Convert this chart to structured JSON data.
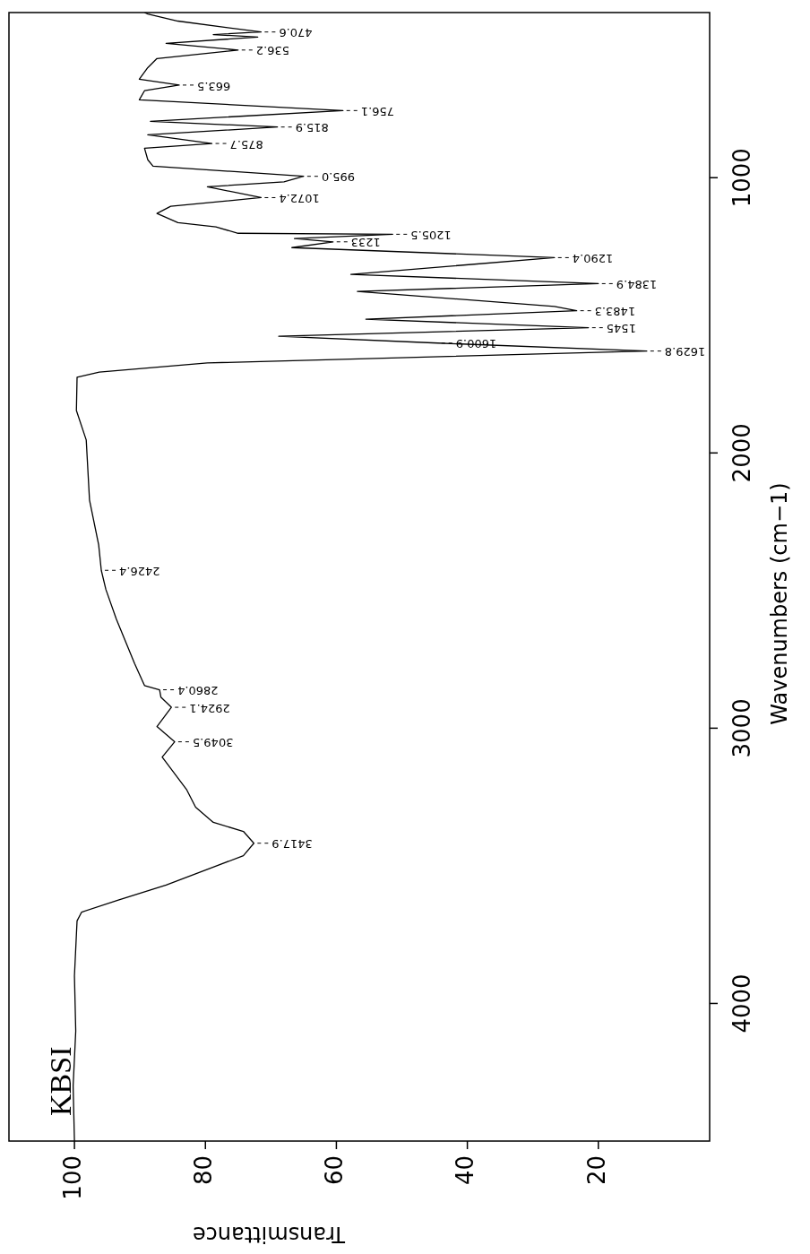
{
  "chart_data": {
    "type": "line",
    "xlabel": "Transmittance",
    "ylabel": "Wavenumbers (cm−1)",
    "xlim": [
      110,
      3
    ],
    "ylim": [
      4500,
      400
    ],
    "xticks": [
      20,
      40,
      60,
      80,
      100
    ],
    "yticks": [
      1000,
      2000,
      3000,
      4000
    ],
    "grid": false,
    "legend": false,
    "marker": "none",
    "line_style": "solid",
    "x": [
      100,
      100.2,
      99.8,
      100,
      99.6,
      98.9,
      93.4,
      86,
      78.8,
      74.2,
      72.6,
      74.2,
      78.8,
      81.5,
      82.9,
      86.6,
      84.7,
      87.4,
      85.2,
      86.8,
      87,
      89.3,
      90.8,
      93.6,
      95.2,
      95.9,
      96.3,
      97.7,
      98.2,
      99.7,
      99.6,
      96.2,
      79.7,
      12.6,
      44.5,
      68.8,
      21.5,
      55.5,
      23.3,
      26.7,
      56.8,
      20,
      57.8,
      26.7,
      66.8,
      60.5,
      66.4,
      51.4,
      75,
      78.4,
      84.2,
      87.4,
      85.3,
      71.5,
      79.7,
      68,
      65,
      88,
      88.8,
      89.3,
      79,
      88.8,
      69,
      88.4,
      59,
      90.1,
      89.3,
      84,
      90.1,
      88.8,
      87.4,
      75,
      86,
      72,
      78.8,
      71.5,
      84.2,
      88.8,
      89.3
    ],
    "series": [
      {
        "color": "#000000",
        "values": [
          4500,
          4300,
          4100,
          3900,
          3700,
          3668,
          3625,
          3570,
          3505,
          3463,
          3417.9,
          3375,
          3342,
          3287,
          3222,
          3105,
          3049.5,
          2994,
          2924.1,
          2887,
          2860.4,
          2845,
          2766,
          2604,
          2496,
          2426.4,
          2334,
          2171,
          1953,
          1846,
          1725,
          1706,
          1673,
          1629.8,
          1600.9,
          1576,
          1545,
          1514,
          1483.3,
          1468,
          1413,
          1384.9,
          1351,
          1290.4,
          1254,
          1233,
          1221,
          1205.5,
          1202,
          1179,
          1163,
          1130,
          1104,
          1072.4,
          1033,
          1015,
          995,
          958,
          935,
          893,
          875.7,
          844,
          815.9,
          795,
          756.1,
          717,
          684,
          663.5,
          642,
          600,
          567,
          536.2,
          512,
          489,
          480,
          470.6,
          431,
          405,
          400
        ]
      }
    ],
    "annotations": [
      "KBSI",
      {
        "text": "3417.9",
        "y": 3417.9,
        "x": 72.6
      },
      {
        "text": "3049.5",
        "y": 3049.5,
        "x": 84.7
      },
      {
        "text": "2924.1",
        "y": 2924.1,
        "x": 85.2
      },
      {
        "text": "2860.4",
        "y": 2860.4,
        "x": 87
      },
      {
        "text": "2426.4",
        "y": 2426.4,
        "x": 95.9
      },
      {
        "text": "1629.8",
        "y": 1629.8,
        "x": 12.6
      },
      {
        "text": "1600.9",
        "y": 1600.9,
        "x": 44.5
      },
      {
        "text": "1545",
        "y": 1545,
        "x": 21.5
      },
      {
        "text": "1483.3",
        "y": 1483.3,
        "x": 23.3
      },
      {
        "text": "1384.9",
        "y": 1384.9,
        "x": 20
      },
      {
        "text": "1290.4",
        "y": 1290.4,
        "x": 26.7
      },
      {
        "text": "1233",
        "y": 1233,
        "x": 60.5
      },
      {
        "text": "1205.5",
        "y": 1205.5,
        "x": 51.4
      },
      {
        "text": "1072.4",
        "y": 1072.4,
        "x": 71.5
      },
      {
        "text": "995.0",
        "y": 995,
        "x": 65
      },
      {
        "text": "875.7",
        "y": 875.7,
        "x": 79
      },
      {
        "text": "815.9",
        "y": 815.9,
        "x": 69
      },
      {
        "text": "756.1",
        "y": 756.1,
        "x": 59
      },
      {
        "text": "663.5",
        "y": 663.5,
        "x": 84
      },
      {
        "text": "536.2",
        "y": 536.2,
        "x": 75
      },
      {
        "text": "470.6",
        "y": 470.6,
        "x": 71.5
      }
    ]
  }
}
